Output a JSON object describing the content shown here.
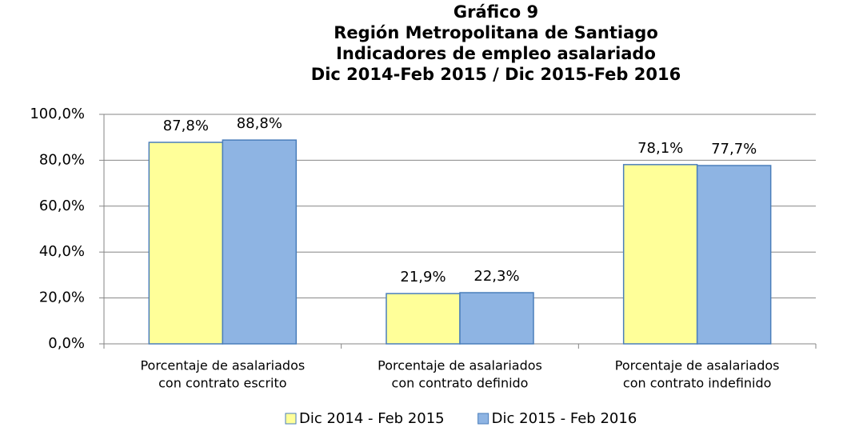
{
  "chart_data": {
    "type": "bar",
    "title": [
      "Gráfico 9",
      "Región Metropolitana de Santiago",
      "Indicadores de empleo asalariado",
      "Dic 2014-Feb 2015 / Dic 2015-Feb 2016"
    ],
    "categories": [
      [
        "Porcentaje de asalariados",
        "con contrato escrito"
      ],
      [
        "Porcentaje de asalariados",
        "con contrato definido"
      ],
      [
        "Porcentaje de asalariados",
        "con contrato indefinido"
      ]
    ],
    "series": [
      {
        "name": "Dic 2014 - Feb 2015",
        "color": "#ffff99",
        "values": [
          87.8,
          21.9,
          78.1
        ],
        "value_labels": [
          "87,8%",
          "21,9%",
          "78,1%"
        ]
      },
      {
        "name": "Dic 2015 - Feb 2016",
        "color": "#8eb4e3",
        "values": [
          88.8,
          22.3,
          77.7
        ],
        "value_labels": [
          "88,8%",
          "22,3%",
          "77,7%"
        ]
      }
    ],
    "ylim": [
      0,
      100
    ],
    "yticks": [
      {
        "value": 0,
        "label": "0,0%"
      },
      {
        "value": 20,
        "label": "20,0%"
      },
      {
        "value": 40,
        "label": "40,0%"
      },
      {
        "value": 60,
        "label": "60,0%"
      },
      {
        "value": 80,
        "label": "80,0%"
      },
      {
        "value": 100,
        "label": "100,0%"
      }
    ],
    "grid": true,
    "legend": "bottom"
  }
}
